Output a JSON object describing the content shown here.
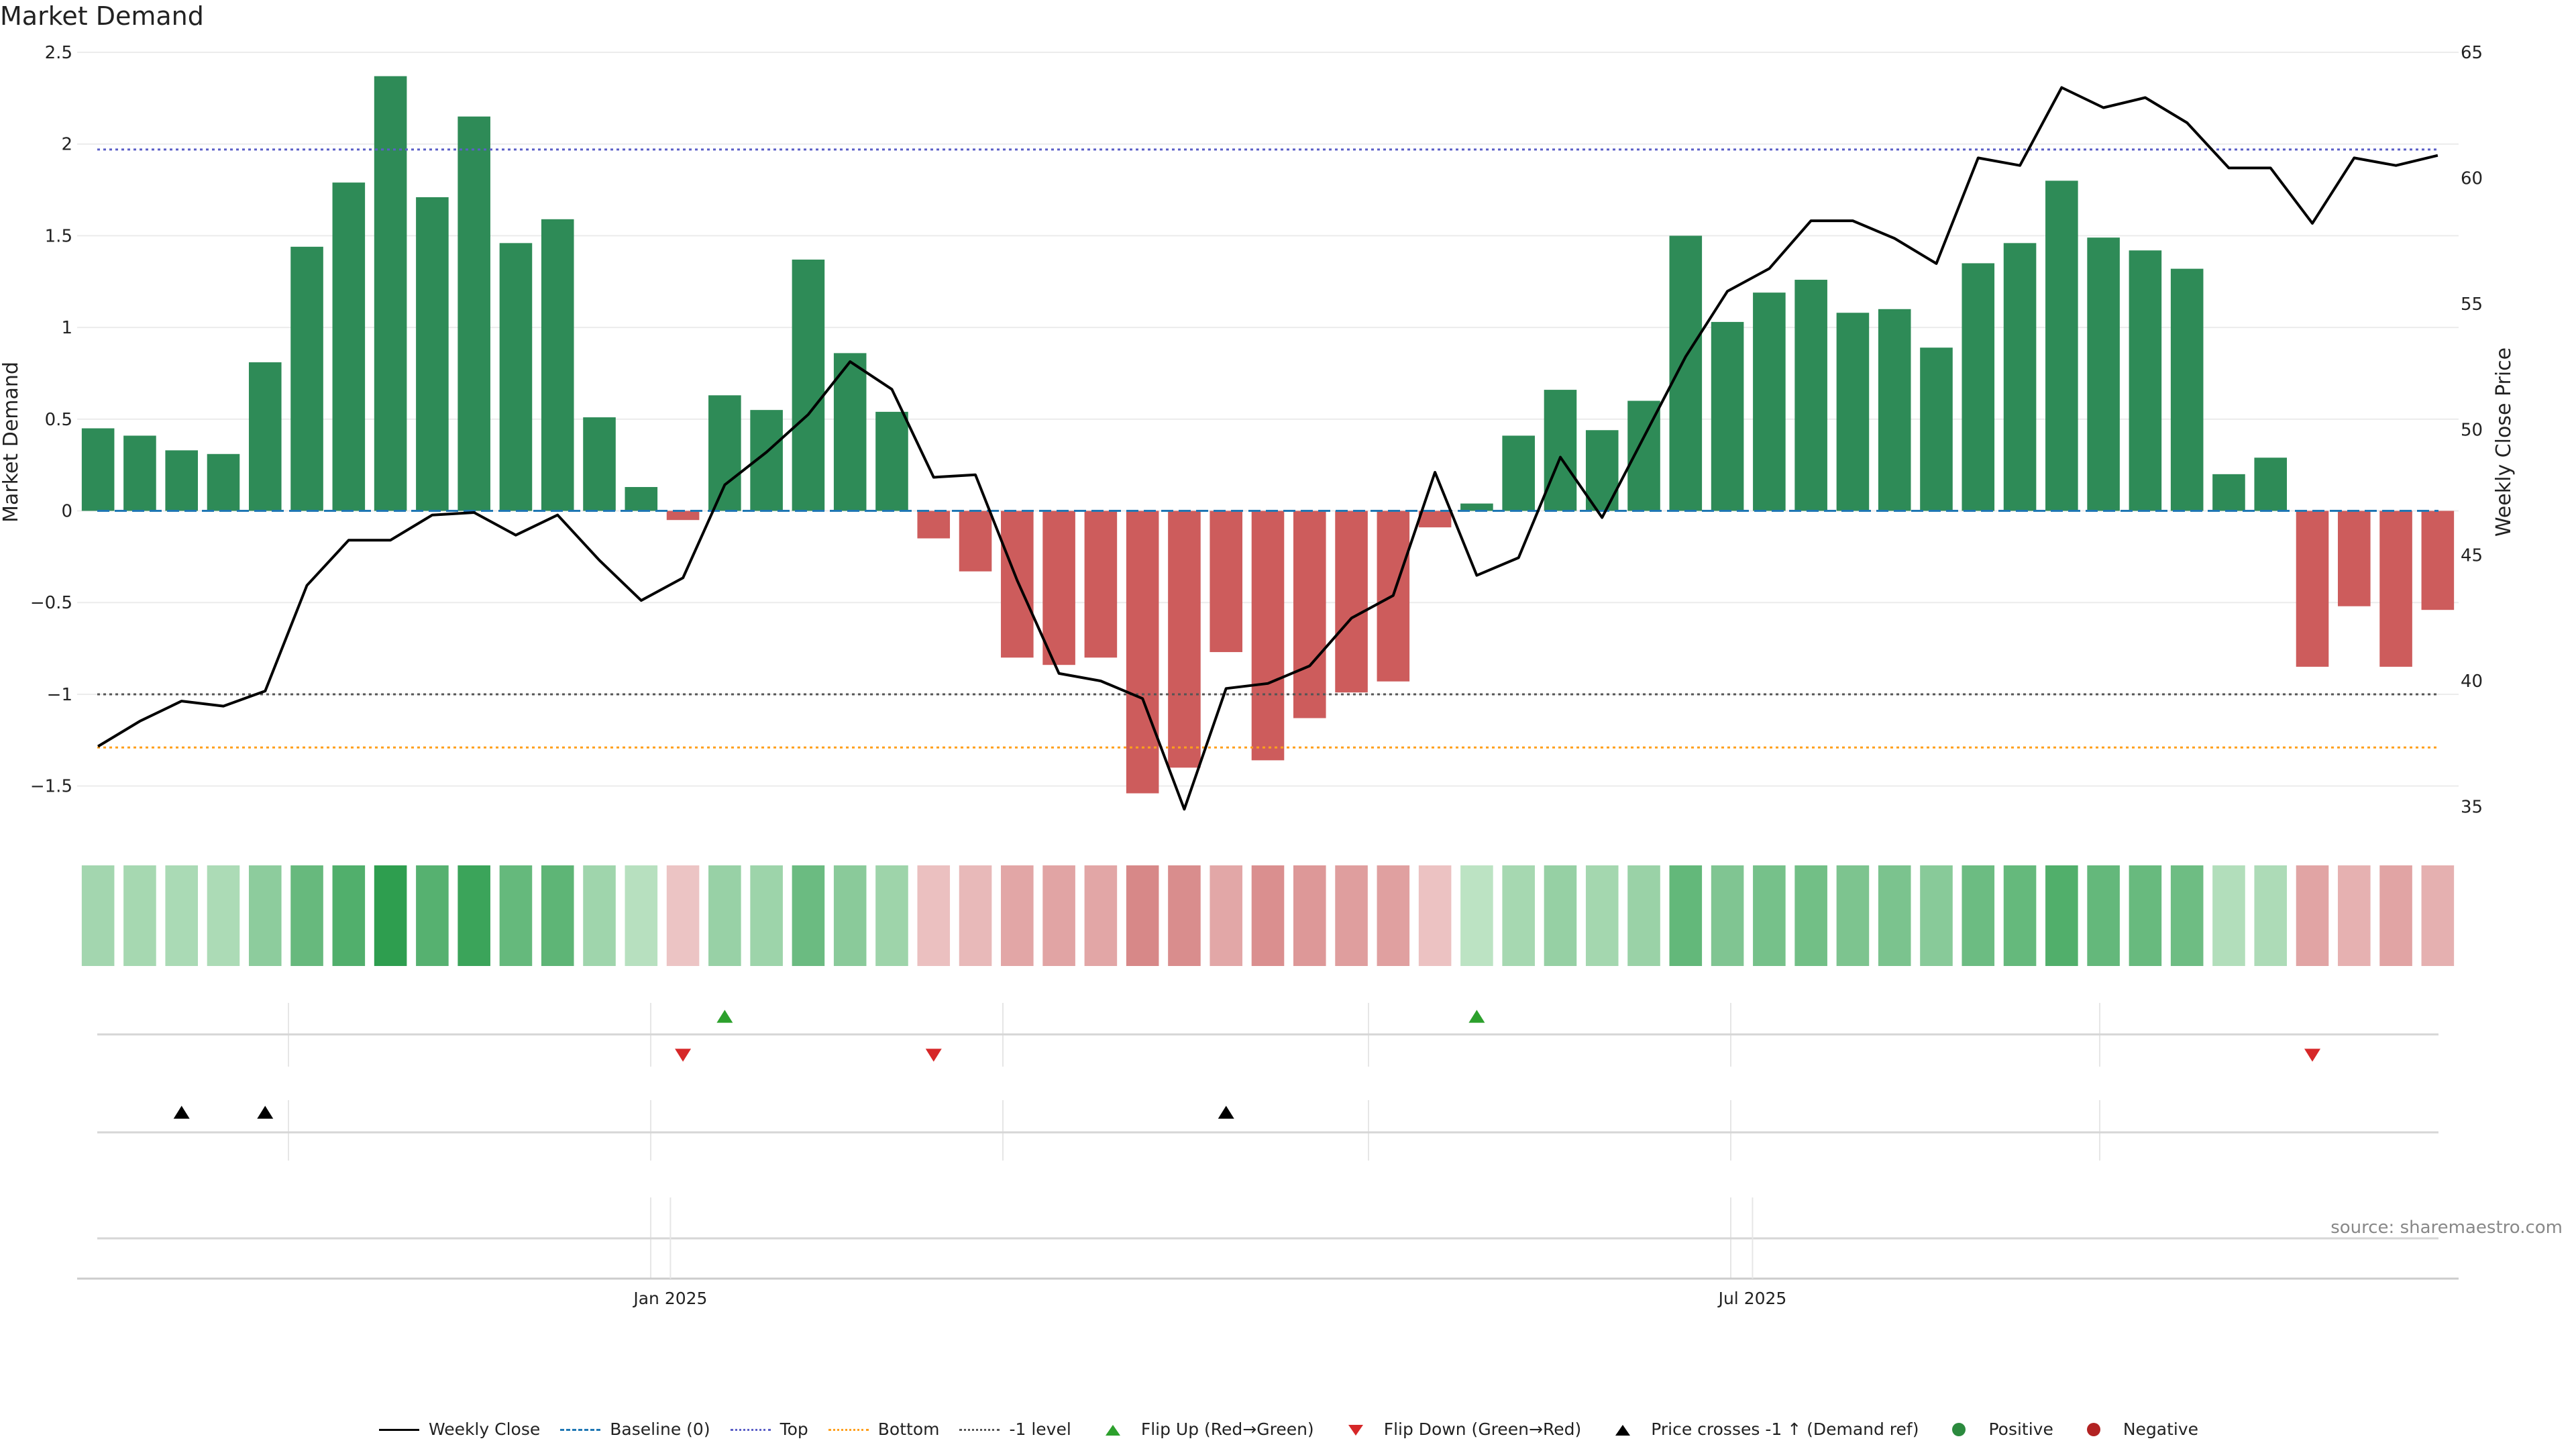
{
  "title": "Market Demand",
  "source": "source: sharemaestro.com",
  "colors": {
    "positive": "#2e8b57",
    "negative": "#cd5c5c",
    "price": "#000000",
    "baseline": "#1f77b4",
    "top": "#5b5fc7",
    "bottom": "#ff9f1c",
    "minus1": "#555555",
    "flip_up": "#2ca02c",
    "flip_down": "#d62728",
    "cross": "#000000",
    "pos_marker": "#2b8a3e",
    "neg_marker": "#b22222"
  },
  "legend": [
    {
      "name": "legend-weekly-close",
      "label": "Weekly Close",
      "kind": "line-solid",
      "color": "#000000"
    },
    {
      "name": "legend-baseline",
      "label": "Baseline (0)",
      "kind": "line-dash",
      "color": "#1f77b4"
    },
    {
      "name": "legend-top",
      "label": "Top",
      "kind": "line-dot",
      "color": "#5b5fc7"
    },
    {
      "name": "legend-bottom",
      "label": "Bottom",
      "kind": "line-dot",
      "color": "#ff9f1c"
    },
    {
      "name": "legend-minus1",
      "label": "-1 level",
      "kind": "line-dot",
      "color": "#555555"
    },
    {
      "name": "legend-flip-up",
      "label": "Flip Up (Red→Green)",
      "kind": "tri-up",
      "color": "#2ca02c"
    },
    {
      "name": "legend-flip-down",
      "label": "Flip Down (Green→Red)",
      "kind": "tri-down",
      "color": "#d62728"
    },
    {
      "name": "legend-price-cross",
      "label": "Price crosses -1 ↑ (Demand ref)",
      "kind": "tri-up",
      "color": "#000000"
    },
    {
      "name": "legend-positive",
      "label": "Positive",
      "kind": "dot",
      "color": "#2b8a3e"
    },
    {
      "name": "legend-negative",
      "label": "Negative",
      "kind": "dot",
      "color": "#b22222"
    }
  ],
  "chart_data": {
    "type": "bar",
    "title": "Market Demand",
    "ylabel": "Market Demand",
    "y2label": "Weekly Close Price",
    "ylim": [
      -1.75,
      2.5
    ],
    "y2lim": [
      34,
      65
    ],
    "yticks": [
      {
        "value": -1.5,
        "label": "−1.5"
      },
      {
        "value": -1,
        "label": "−1"
      },
      {
        "value": -0.5,
        "label": "−0.5"
      },
      {
        "value": 0,
        "label": "0"
      },
      {
        "value": 0.5,
        "label": "0.5"
      },
      {
        "value": 1,
        "label": "1"
      },
      {
        "value": 1.5,
        "label": "1.5"
      },
      {
        "value": 2,
        "label": "2"
      },
      {
        "value": 2.5,
        "label": "2.5"
      }
    ],
    "y2ticks": [
      35,
      40,
      45,
      50,
      55,
      60,
      65
    ],
    "xticks": [
      {
        "index": 13.7,
        "label": "Jan 2025"
      },
      {
        "index": 39.6,
        "label": "Jul 2025"
      }
    ],
    "reference_lines": {
      "baseline": 0,
      "top": 1.97,
      "minus1": -1,
      "bottom": -1.29
    },
    "demand": [
      0.45,
      0.41,
      0.33,
      0.31,
      0.81,
      1.44,
      1.79,
      2.37,
      1.71,
      2.15,
      1.46,
      1.59,
      0.51,
      0.13,
      -0.05,
      0.63,
      0.55,
      1.37,
      0.86,
      0.54,
      -0.15,
      -0.33,
      -0.8,
      -0.84,
      -0.8,
      -1.54,
      -1.4,
      -0.77,
      -1.36,
      -1.13,
      -0.99,
      -0.93,
      -0.09,
      0.04,
      0.41,
      0.66,
      0.44,
      0.6,
      1.5,
      1.03,
      1.19,
      1.26,
      1.08,
      1.1,
      0.89,
      1.35,
      1.46,
      1.8,
      1.49,
      1.42,
      1.32,
      0.2,
      0.29,
      -0.85,
      -0.52,
      -0.85,
      -0.54
    ],
    "weekly_close": [
      37.4,
      38.4,
      39.2,
      39.0,
      39.6,
      43.8,
      45.6,
      45.6,
      46.6,
      46.7,
      45.8,
      46.6,
      44.8,
      43.2,
      44.1,
      47.8,
      49.1,
      50.6,
      52.7,
      51.6,
      48.1,
      48.2,
      44.0,
      40.3,
      40.0,
      39.3,
      34.9,
      39.7,
      39.9,
      40.6,
      42.5,
      43.4,
      48.3,
      44.2,
      44.9,
      48.9,
      46.5,
      49.7,
      52.9,
      55.5,
      56.4,
      58.3,
      58.3,
      57.6,
      56.6,
      60.8,
      60.5,
      63.6,
      62.8,
      63.2,
      62.2,
      60.4,
      60.4,
      58.2,
      60.8,
      60.5,
      60.9
    ],
    "flip_up": [
      15,
      33
    ],
    "flip_down": [
      14,
      20,
      53
    ],
    "price_cross": [
      2,
      4,
      27
    ]
  }
}
